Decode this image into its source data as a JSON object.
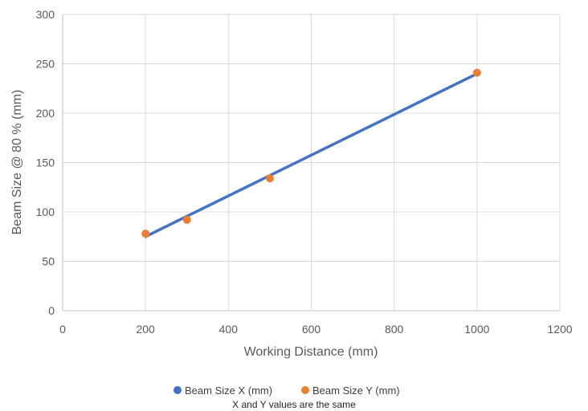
{
  "chart_data": {
    "type": "scatter",
    "title": "",
    "xlabel": "Working Distance (mm)",
    "ylabel": "Beam Size @ 80 % (mm)",
    "xlim": [
      0,
      1200
    ],
    "ylim": [
      0,
      300
    ],
    "x_ticks": [
      0,
      200,
      400,
      600,
      800,
      1000,
      1200
    ],
    "y_ticks": [
      0,
      50,
      100,
      150,
      200,
      250,
      300
    ],
    "grid": true,
    "legend_position": "bottom",
    "series": [
      {
        "name": "Beam Size X (mm)",
        "kind": "line",
        "color": "#4472C4",
        "x": [
          200,
          1000
        ],
        "y": [
          75,
          240
        ]
      },
      {
        "name": "Beam Size Y (mm)",
        "kind": "scatter",
        "color": "#ED7D31",
        "x": [
          200,
          300,
          500,
          1000
        ],
        "y": [
          78,
          92,
          134,
          241
        ]
      }
    ],
    "note": "X and Y values are the same"
  }
}
